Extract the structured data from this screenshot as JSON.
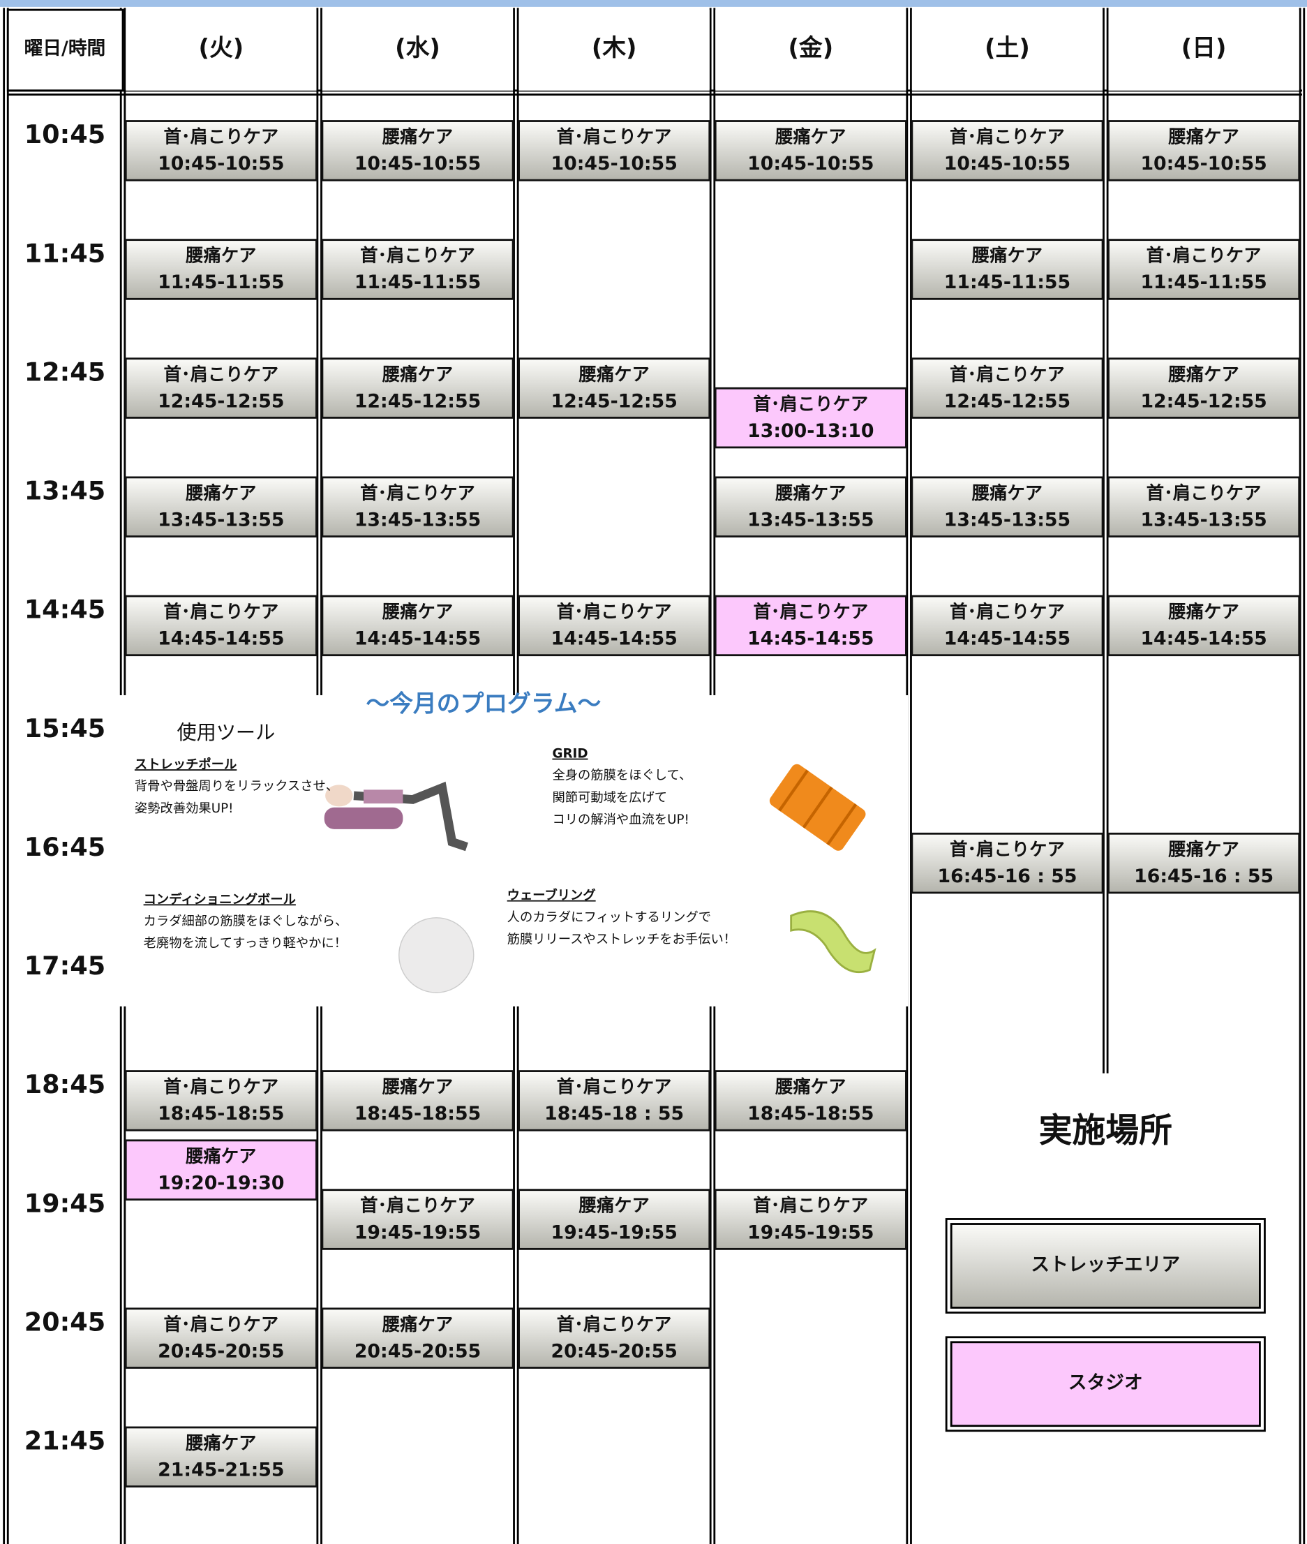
{
  "header": {
    "corner": "曜日/時間"
  },
  "times": [
    "10:45",
    "11:45",
    "12:45",
    "13:45",
    "14:45",
    "15:45",
    "16:45",
    "17:45",
    "18:45",
    "19:45",
    "20:45",
    "21:45"
  ],
  "days": [
    {
      "label": "(火)",
      "sessions": [
        {
          "title": "首･肩こりケア",
          "time": "10:45-10:55",
          "area": 0
        },
        {
          "title": "腰痛ケア",
          "time": "11:45-11:55",
          "area": 0
        },
        {
          "title": "首･肩こりケア",
          "time": "12:45-12:55",
          "area": 0
        },
        {
          "title": "腰痛ケア",
          "time": "13:45-13:55",
          "area": 0
        },
        {
          "title": "首･肩こりケア",
          "time": "14:45-14:55",
          "area": 0
        },
        {
          "title": "首･肩こりケア",
          "time": "18:45-18:55",
          "area": 0
        },
        {
          "title": "腰痛ケア",
          "time": "19:20-19:30",
          "area": 1
        },
        {
          "title": "首･肩こりケア",
          "time": "20:45-20:55",
          "area": 0
        },
        {
          "title": "腰痛ケア",
          "time": "21:45-21:55",
          "area": 0
        }
      ]
    },
    {
      "label": "(水)",
      "sessions": [
        {
          "title": "腰痛ケア",
          "time": "10:45-10:55",
          "area": 0
        },
        {
          "title": "首･肩こりケア",
          "time": "11:45-11:55",
          "area": 0
        },
        {
          "title": "腰痛ケア",
          "time": "12:45-12:55",
          "area": 0
        },
        {
          "title": "首･肩こりケア",
          "time": "13:45-13:55",
          "area": 0
        },
        {
          "title": "腰痛ケア",
          "time": "14:45-14:55",
          "area": 0
        },
        {
          "title": "腰痛ケア",
          "time": "18:45-18:55",
          "area": 0
        },
        {
          "title": "首･肩こりケア",
          "time": "19:45-19:55",
          "area": 0
        },
        {
          "title": "腰痛ケア",
          "time": "20:45-20:55",
          "area": 0
        }
      ]
    },
    {
      "label": "(木)",
      "sessions": [
        {
          "title": "首･肩こりケア",
          "time": "10:45-10:55",
          "area": 0
        },
        {
          "title": "腰痛ケア",
          "time": "12:45-12:55",
          "area": 0
        },
        {
          "title": "首･肩こりケア",
          "time": "14:45-14:55",
          "area": 0
        },
        {
          "title": "首･肩こりケア",
          "time": "18:45-18 : 55",
          "area": 0
        },
        {
          "title": "腰痛ケア",
          "time": "19:45-19:55",
          "area": 0
        },
        {
          "title": "首･肩こりケア",
          "time": "20:45-20:55",
          "area": 0
        }
      ]
    },
    {
      "label": "(金)",
      "sessions": [
        {
          "title": "腰痛ケア",
          "time": "10:45-10:55",
          "area": 0
        },
        {
          "title": "首･肩こりケア",
          "time": "13:00-13:10",
          "area": 1
        },
        {
          "title": "腰痛ケア",
          "time": "13:45-13:55",
          "area": 0
        },
        {
          "title": "首･肩こりケア",
          "time": "14:45-14:55",
          "area": 1
        },
        {
          "title": "腰痛ケア",
          "time": "18:45-18:55",
          "area": 0
        },
        {
          "title": "首･肩こりケア",
          "time": "19:45-19:55",
          "area": 0
        }
      ]
    },
    {
      "label": "(土)",
      "sessions": [
        {
          "title": "首･肩こりケア",
          "time": "10:45-10:55",
          "area": 0
        },
        {
          "title": "腰痛ケア",
          "time": "11:45-11:55",
          "area": 0
        },
        {
          "title": "首･肩こりケア",
          "time": "12:45-12:55",
          "area": 0
        },
        {
          "title": "腰痛ケア",
          "time": "13:45-13:55",
          "area": 0
        },
        {
          "title": "首･肩こりケア",
          "time": "14:45-14:55",
          "area": 0
        },
        {
          "title": "首･肩こりケア",
          "time": "16:45-16 : 55",
          "area": 0
        }
      ]
    },
    {
      "label": "(日)",
      "sessions": [
        {
          "title": "腰痛ケア",
          "time": "10:45-10:55",
          "area": 0
        },
        {
          "title": "首･肩こりケア",
          "time": "11:45-11:55",
          "area": 0
        },
        {
          "title": "腰痛ケア",
          "time": "12:45-12:55",
          "area": 0
        },
        {
          "title": "首･肩こりケア",
          "time": "13:45-13:55",
          "area": 0
        },
        {
          "title": "腰痛ケア",
          "time": "14:45-14:55",
          "area": 0
        },
        {
          "title": "腰痛ケア",
          "time": "16:45-16 : 55",
          "area": 0
        }
      ]
    }
  ],
  "program": {
    "title": "〜今月のプログラム〜",
    "subtitle": "使用ツール",
    "tools": [
      {
        "name": "ストレッチポール",
        "lines": [
          "背骨や骨盤周りをリラックスさせ、",
          "姿勢改善効果UP!"
        ]
      },
      {
        "name": "GRID",
        "lines": [
          "全身の筋膜をほぐして、",
          "関節可動域を広げて",
          "コリの解消や血流をUP!"
        ]
      },
      {
        "name": "コンディショニングボール",
        "lines": [
          "カラダ細部の筋膜をほぐしながら、",
          "老廃物を流してすっきり軽やかに！"
        ]
      },
      {
        "name": "ウェーブリング",
        "lines": [
          "人のカラダにフィットするリングで",
          "筋膜リリースやストレッチをお手伝い！"
        ]
      }
    ]
  },
  "legend": {
    "title": "実施場所",
    "items": [
      {
        "label": "ストレッチエリア",
        "color": "#b4b4ac"
      },
      {
        "label": "スタジオ",
        "color": "#fcc8fc"
      }
    ]
  }
}
